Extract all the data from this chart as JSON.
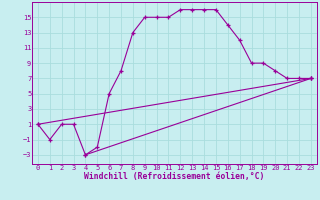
{
  "background_color": "#c8eef0",
  "grid_color": "#aadddd",
  "line_color": "#990099",
  "xlim": [
    -0.5,
    23.5
  ],
  "ylim": [
    -4.2,
    17
  ],
  "xticks": [
    0,
    1,
    2,
    3,
    4,
    5,
    6,
    7,
    8,
    9,
    10,
    11,
    12,
    13,
    14,
    15,
    16,
    17,
    18,
    19,
    20,
    21,
    22,
    23
  ],
  "yticks": [
    -3,
    -1,
    1,
    3,
    5,
    7,
    9,
    11,
    13,
    15
  ],
  "xlabel": "Windchill (Refroidissement éolien,°C)",
  "line1_x": [
    0,
    1,
    2,
    3,
    4,
    5,
    6,
    7,
    8,
    9,
    10,
    11,
    12,
    13,
    14,
    15,
    16,
    17,
    18,
    19,
    20,
    21,
    22,
    23
  ],
  "line1_y": [
    1,
    -1,
    1,
    1,
    -3,
    -2,
    5,
    8,
    13,
    15,
    15,
    15,
    16,
    16,
    16,
    16,
    14,
    12,
    9,
    9,
    8,
    7,
    7,
    7
  ],
  "line2_x": [
    0,
    23
  ],
  "line2_y": [
    1,
    7
  ],
  "line3_x": [
    4,
    23
  ],
  "line3_y": [
    -3,
    7
  ],
  "tick_fontsize": 5.0,
  "xlabel_fontsize": 5.8,
  "marker": "+"
}
